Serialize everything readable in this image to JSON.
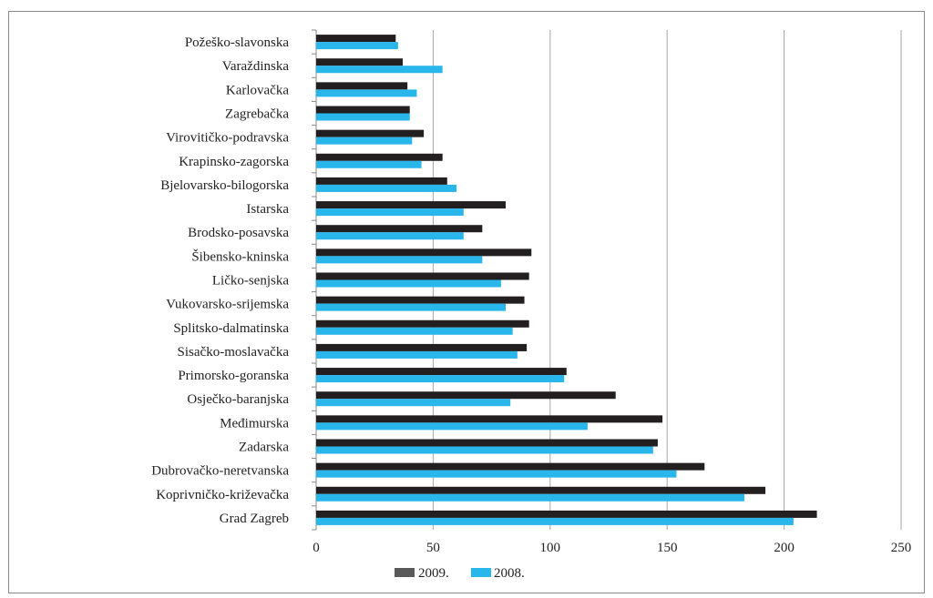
{
  "chart_data": {
    "type": "bar",
    "orientation": "horizontal",
    "categories": [
      "Požeško-slavonska",
      "Varaždinska",
      "Karlovačka",
      "Zagrebačka",
      "Virovitičko-podravska",
      "Krapinsko-zagorska",
      "Bjelovarsko-bilogorska",
      "Istarska",
      "Brodsko-posavska",
      "Šibensko-kninska",
      "Ličko-senjska",
      "Vukovarsko-srijemska",
      "Splitsko-dalmatinska",
      "Sisačko-moslavačka",
      "Primorsko-goranska",
      "Osječko-baranjska",
      "Međimurska",
      "Zadarska",
      "Dubrovačko-neretvanska",
      "Koprivničko-križevačka",
      "Grad Zagreb"
    ],
    "series": [
      {
        "name": "2009.",
        "color": "#231f20",
        "values": [
          34,
          37,
          39,
          40,
          46,
          54,
          56,
          81,
          71,
          92,
          91,
          89,
          91,
          90,
          107,
          128,
          148,
          146,
          166,
          192,
          214
        ]
      },
      {
        "name": "2008.",
        "color": "#29b6ea",
        "values": [
          35,
          54,
          43,
          40,
          41,
          45,
          60,
          63,
          63,
          71,
          79,
          81,
          84,
          86,
          106,
          83,
          116,
          144,
          154,
          183,
          204
        ]
      }
    ],
    "xlim": [
      0,
      250
    ],
    "xticks": [
      "0",
      "50",
      "100",
      "150",
      "200",
      "250"
    ],
    "grid": true,
    "legend_position": "bottom",
    "title": "",
    "xlabel": "",
    "ylabel": ""
  }
}
